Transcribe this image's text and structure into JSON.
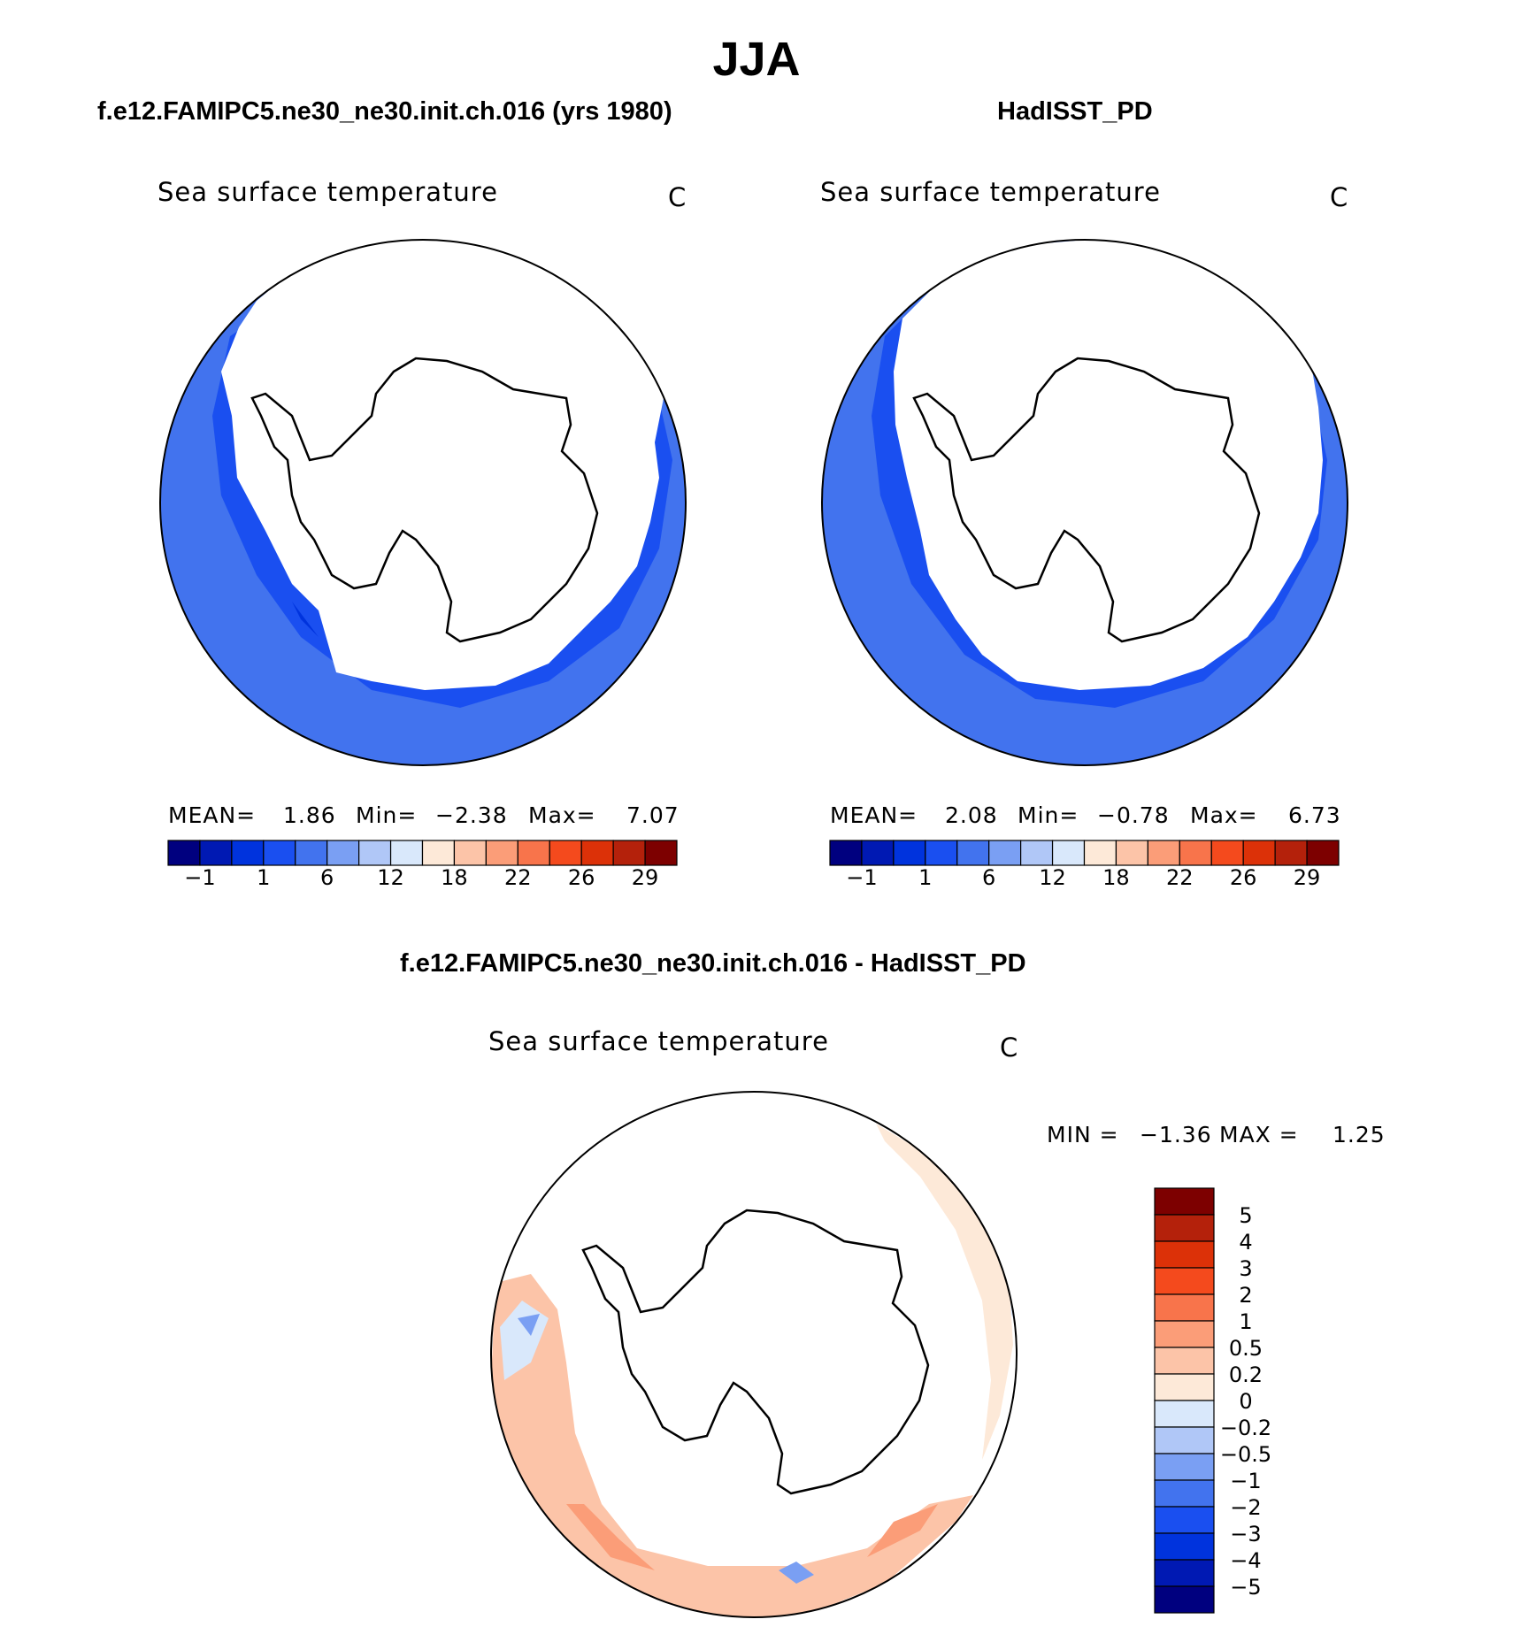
{
  "page": {
    "title": "JJA"
  },
  "panels": [
    {
      "heading": "f.e12.FAMIPC5.ne30_ne30.init.ch.016 (yrs 1980)",
      "variable": "Sea surface temperature",
      "units": "C",
      "stats": {
        "mean_label": "MEAN=",
        "mean": "1.86",
        "min_label": "Min=",
        "min": "−2.38",
        "max_label": "Max=",
        "max": "7.07"
      },
      "colorbar": {
        "tick_labels": [
          "−1",
          "1",
          "6",
          "12",
          "18",
          "22",
          "26",
          "29"
        ],
        "colors": [
          "#00007f",
          "#0019b3",
          "#0033dd",
          "#1a4ff0",
          "#4273ee",
          "#7a9ff3",
          "#b0c7f7",
          "#d9e8fb",
          "#fde9d8",
          "#fcc4a8",
          "#fb9d78",
          "#f8744b",
          "#f44a1d",
          "#dc3108",
          "#b4210b",
          "#7d0000"
        ]
      }
    },
    {
      "heading": "HadISST_PD",
      "variable": "Sea surface temperature",
      "units": "C",
      "stats": {
        "mean_label": "MEAN=",
        "mean": "2.08",
        "min_label": "Min=",
        "min": "−0.78",
        "max_label": "Max=",
        "max": "6.73"
      },
      "colorbar": {
        "tick_labels": [
          "−1",
          "1",
          "6",
          "12",
          "18",
          "22",
          "26",
          "29"
        ],
        "colors": [
          "#00007f",
          "#0019b3",
          "#0033dd",
          "#1a4ff0",
          "#4273ee",
          "#7a9ff3",
          "#b0c7f7",
          "#d9e8fb",
          "#fde9d8",
          "#fcc4a8",
          "#fb9d78",
          "#f8744b",
          "#f44a1d",
          "#dc3108",
          "#b4210b",
          "#7d0000"
        ]
      }
    },
    {
      "heading": "f.e12.FAMIPC5.ne30_ne30.init.ch.016 - HadISST_PD",
      "variable": "Sea surface temperature",
      "units": "C",
      "stats": {
        "min_label": "MIN =",
        "min": "−1.36",
        "max_label": "MAX =",
        "max": "1.25"
      },
      "colorbar": {
        "tick_labels": [
          "5",
          "4",
          "3",
          "2",
          "1",
          "0.5",
          "0.2",
          "0",
          "−0.2",
          "−0.5",
          "−1",
          "−2",
          "−3",
          "−4",
          "−5"
        ],
        "colors": [
          "#7d0000",
          "#b4210b",
          "#dc3108",
          "#f44a1d",
          "#f8744b",
          "#fb9d78",
          "#fcc4a8",
          "#fde9d8",
          "#d9e8fb",
          "#b0c7f7",
          "#7a9ff3",
          "#4273ee",
          "#1a4ff0",
          "#0033dd",
          "#0019b3",
          "#00007f"
        ]
      }
    }
  ]
}
